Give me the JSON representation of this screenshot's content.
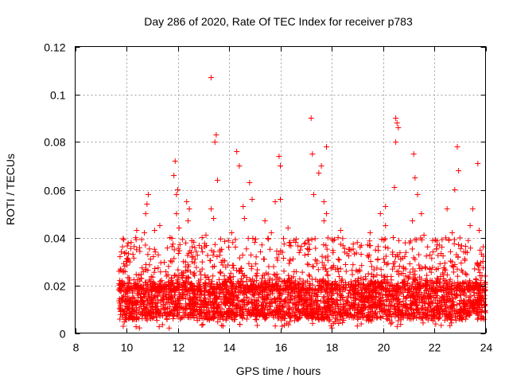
{
  "chart_data": {
    "type": "scatter",
    "title": "Day 286 of 2020, Rate Of TEC Index for receiver p783",
    "xlabel": "GPS time / hours",
    "ylabel": "ROTI / TECUs",
    "xlim": [
      8,
      24
    ],
    "ylim": [
      0,
      0.12
    ],
    "xticks": [
      8,
      10,
      12,
      14,
      16,
      18,
      20,
      22,
      24
    ],
    "yticks": [
      0,
      0.02,
      0.04,
      0.06,
      0.08,
      0.1,
      0.12
    ],
    "xtick_labels": [
      "8",
      "10",
      "12",
      "14",
      "16",
      "18",
      "20",
      "22",
      "24"
    ],
    "ytick_labels": [
      "0",
      "0.02",
      "0.04",
      "0.06",
      "0.08",
      "0.1",
      "0.12"
    ],
    "grid": true,
    "marker": "plus",
    "color": "#ff0000",
    "series": [
      {
        "name": "ROTI",
        "x_range": [
          9.7,
          24
        ],
        "typical_band": [
          0.005,
          0.02
        ],
        "points": [
          [
            13.3,
            0.107
          ],
          [
            17.2,
            0.09
          ],
          [
            20.5,
            0.09
          ],
          [
            20.55,
            0.088
          ],
          [
            20.6,
            0.086
          ],
          [
            13.5,
            0.083
          ],
          [
            13.45,
            0.08
          ],
          [
            20.5,
            0.08
          ],
          [
            17.8,
            0.078
          ],
          [
            22.9,
            0.078
          ],
          [
            21.2,
            0.075
          ],
          [
            14.3,
            0.076
          ],
          [
            15.95,
            0.074
          ],
          [
            17.25,
            0.075
          ],
          [
            23.7,
            0.071
          ],
          [
            11.9,
            0.072
          ],
          [
            16.0,
            0.07
          ],
          [
            17.6,
            0.07
          ],
          [
            14.4,
            0.07
          ],
          [
            22.95,
            0.068
          ],
          [
            11.85,
            0.066
          ],
          [
            17.5,
            0.067
          ],
          [
            13.55,
            0.064
          ],
          [
            14.8,
            0.063
          ],
          [
            21.25,
            0.065
          ],
          [
            12.0,
            0.06
          ],
          [
            20.45,
            0.061
          ],
          [
            10.85,
            0.058
          ],
          [
            11.95,
            0.058
          ],
          [
            17.3,
            0.058
          ],
          [
            16.0,
            0.056
          ],
          [
            10.8,
            0.054
          ],
          [
            14.9,
            0.056
          ],
          [
            21.35,
            0.058
          ],
          [
            22.8,
            0.06
          ],
          [
            12.35,
            0.055
          ],
          [
            17.7,
            0.055
          ],
          [
            15.8,
            0.055
          ],
          [
            20.1,
            0.053
          ],
          [
            12.45,
            0.052
          ],
          [
            23.5,
            0.052
          ],
          [
            13.3,
            0.052
          ],
          [
            14.55,
            0.053
          ],
          [
            10.75,
            0.05
          ],
          [
            11.95,
            0.05
          ],
          [
            17.8,
            0.05
          ],
          [
            21.5,
            0.05
          ],
          [
            22.5,
            0.052
          ],
          [
            14.6,
            0.048
          ],
          [
            15.4,
            0.047
          ],
          [
            19.9,
            0.05
          ],
          [
            12.4,
            0.047
          ],
          [
            13.4,
            0.048
          ],
          [
            17.7,
            0.047
          ],
          [
            11.3,
            0.045
          ],
          [
            21.15,
            0.047
          ],
          [
            23.4,
            0.045
          ],
          [
            20.1,
            0.045
          ],
          [
            11.1,
            0.043
          ],
          [
            14.1,
            0.042
          ],
          [
            16.3,
            0.044
          ],
          [
            15.65,
            0.042
          ],
          [
            18.35,
            0.043
          ],
          [
            22.7,
            0.042
          ],
          [
            10.7,
            0.042
          ],
          [
            10.4,
            0.043
          ],
          [
            13.1,
            0.041
          ],
          [
            19.5,
            0.042
          ],
          [
            21.6,
            0.041
          ],
          [
            23.75,
            0.043
          ],
          [
            12.05,
            0.044
          ],
          [
            12.95,
            0.04
          ],
          [
            11.7,
            0.04
          ],
          [
            16.6,
            0.038
          ],
          [
            18.25,
            0.04
          ],
          [
            20.4,
            0.04
          ],
          [
            22.3,
            0.036
          ],
          [
            15.0,
            0.038
          ],
          [
            9.8,
            0.034
          ],
          [
            10.25,
            0.033
          ],
          [
            11.05,
            0.032
          ],
          [
            13.65,
            0.034
          ],
          [
            14.25,
            0.036
          ],
          [
            17.1,
            0.035
          ],
          [
            18.7,
            0.035
          ],
          [
            19.15,
            0.033
          ],
          [
            21.95,
            0.034
          ],
          [
            23.15,
            0.034
          ],
          [
            9.75,
            0.032
          ],
          [
            12.6,
            0.032
          ],
          [
            15.35,
            0.031
          ],
          [
            19.8,
            0.031
          ],
          [
            20.85,
            0.032
          ],
          [
            23.9,
            0.03
          ]
        ]
      }
    ]
  }
}
